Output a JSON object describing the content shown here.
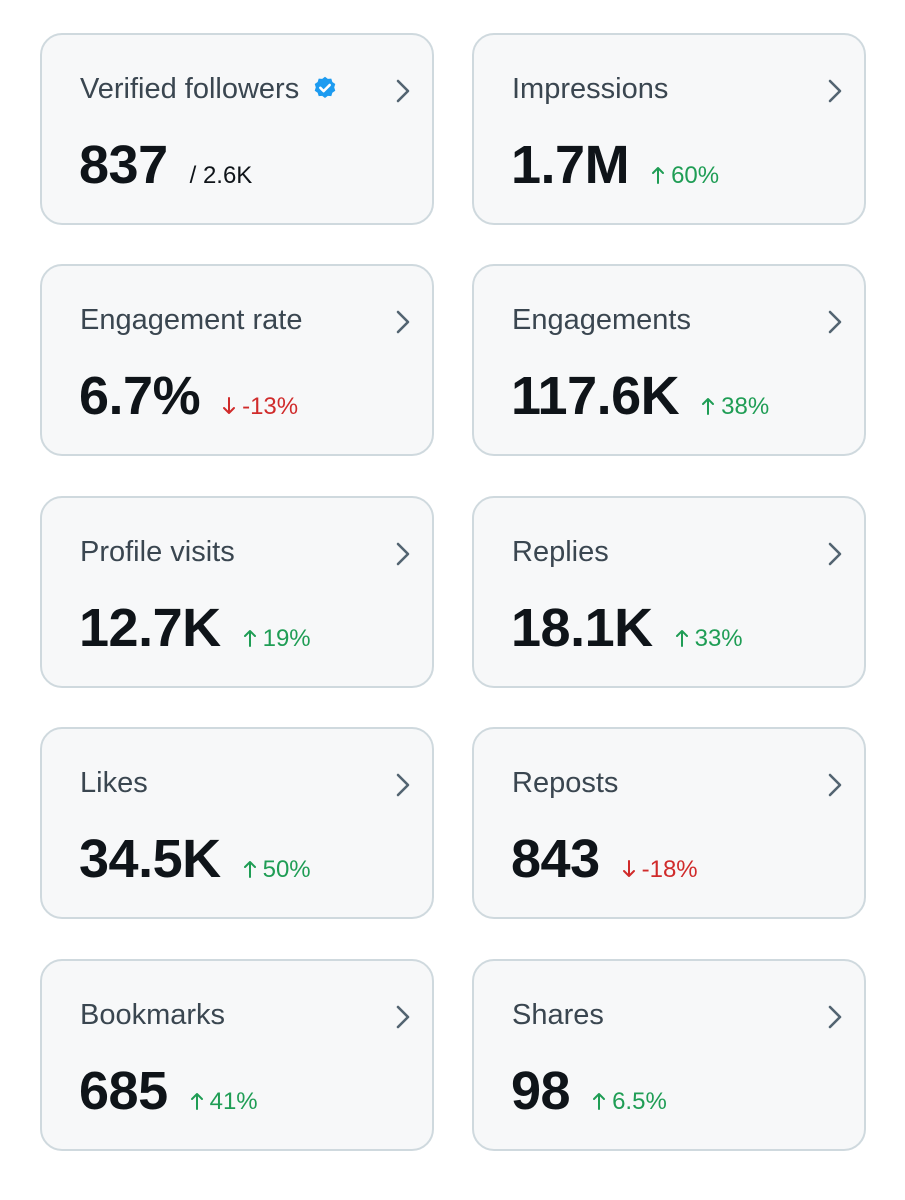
{
  "colors": {
    "card_bg": "#f7f8f9",
    "card_border": "#cfd9de",
    "positive": "#1f9d55",
    "negative": "#d02b2b",
    "verified": "#1d9bf0"
  },
  "metrics": [
    {
      "title": "Verified followers",
      "value": "837",
      "sub": "/ 2.6K",
      "icon": "verified-badge-icon"
    },
    {
      "title": "Impressions",
      "value": "1.7M",
      "change": "60%",
      "direction": "up"
    },
    {
      "title": "Engagement rate",
      "value": "6.7%",
      "change": "-13%",
      "direction": "down"
    },
    {
      "title": "Engagements",
      "value": "117.6K",
      "change": "38%",
      "direction": "up"
    },
    {
      "title": "Profile visits",
      "value": "12.7K",
      "change": "19%",
      "direction": "up"
    },
    {
      "title": "Replies",
      "value": "18.1K",
      "change": "33%",
      "direction": "up"
    },
    {
      "title": "Likes",
      "value": "34.5K",
      "change": "50%",
      "direction": "up"
    },
    {
      "title": "Reposts",
      "value": "843",
      "change": "-18%",
      "direction": "down"
    },
    {
      "title": "Bookmarks",
      "value": "685",
      "change": "41%",
      "direction": "up"
    },
    {
      "title": "Shares",
      "value": "98",
      "change": "6.5%",
      "direction": "up"
    }
  ]
}
